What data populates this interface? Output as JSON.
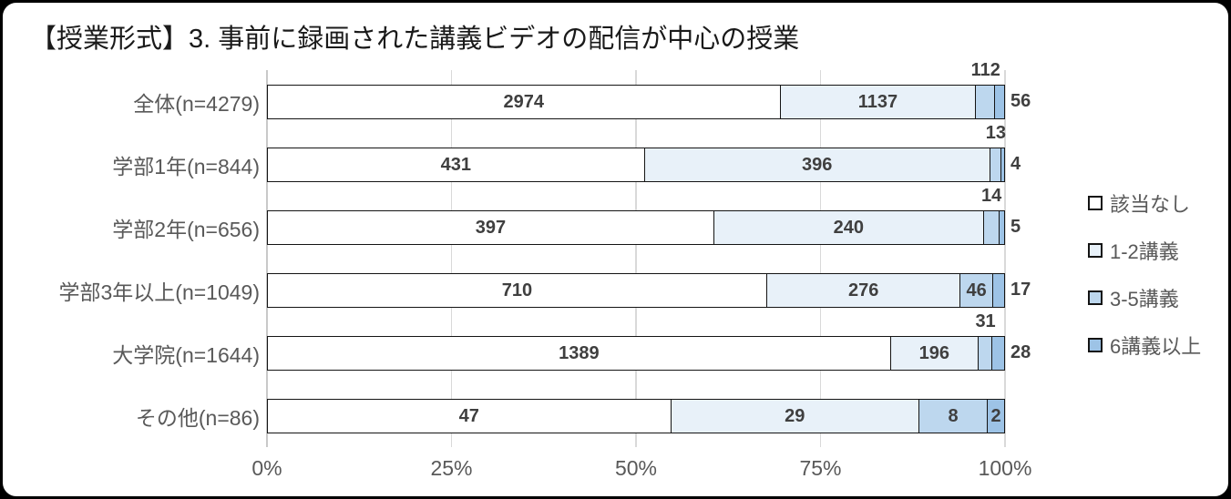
{
  "title": "【授業形式】3. 事前に録画された講義ビデオの配信が中心の授業",
  "colors": {
    "series": [
      "#FFFFFF",
      "#E8F1F9",
      "#BDD7EE",
      "#9DC3E6"
    ],
    "segment_border": "#141414",
    "gridline": "#D9D9D9",
    "data_label": "#3F3F3F",
    "axis_text": "#595959"
  },
  "chart_data": {
    "type": "bar",
    "orientation": "horizontal",
    "stacking": "100%",
    "title": "【授業形式】3. 事前に録画された講義ビデオの配信が中心の授業",
    "categories": [
      "全体(n=4279)",
      "学部1年(n=844)",
      "学部2年(n=656)",
      "学部3年以上(n=1049)",
      "大学院(n=1644)",
      "その他(n=86)"
    ],
    "totals": [
      4279,
      844,
      656,
      1049,
      1644,
      86
    ],
    "series": [
      {
        "name": "該当なし",
        "color": "#FFFFFF",
        "values": [
          2974,
          431,
          397,
          710,
          1389,
          47
        ]
      },
      {
        "name": "1-2講義",
        "color": "#E8F1F9",
        "values": [
          1137,
          396,
          240,
          276,
          196,
          29
        ]
      },
      {
        "name": "3-5講義",
        "color": "#BDD7EE",
        "values": [
          112,
          13,
          14,
          46,
          31,
          8
        ]
      },
      {
        "name": "6講義以上",
        "color": "#9DC3E6",
        "values": [
          56,
          4,
          5,
          17,
          28,
          2
        ]
      }
    ],
    "x_axis": {
      "ticks": [
        "0%",
        "25%",
        "50%",
        "75%",
        "100%"
      ],
      "range_percent": [
        0,
        100
      ],
      "gridlines": true
    },
    "legend_position": "right",
    "data_labels": true
  }
}
